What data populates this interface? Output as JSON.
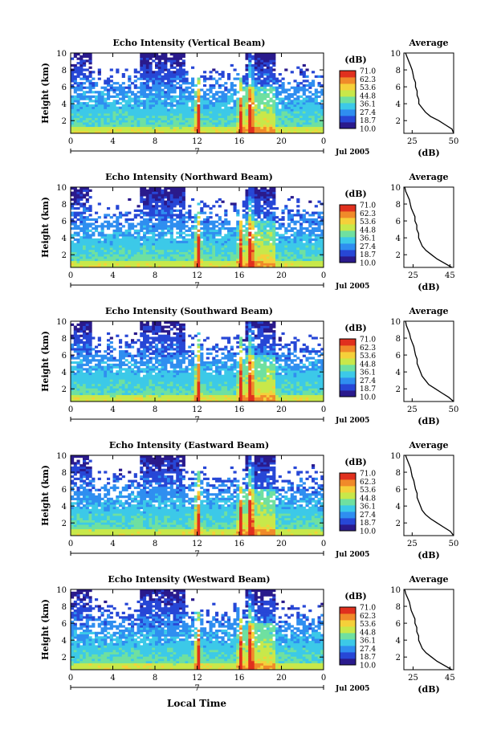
{
  "figure": {
    "x_axis_title": "Local Time",
    "date_label": "Jul 2005",
    "day_marker": "7",
    "colorbar_unit": "(dB)",
    "colorbar_ticks": [
      "71.0",
      "62.3",
      "53.6",
      "44.8",
      "36.1",
      "27.4",
      "18.7",
      "10.0"
    ],
    "colormap": [
      "#2a1a8c",
      "#2747d6",
      "#2f8ef0",
      "#3cc9e8",
      "#6fe0a0",
      "#c8e84a",
      "#f5d03a",
      "#f08a2a",
      "#e0301e"
    ],
    "missing_color": "#ffffff"
  },
  "chart_data": [
    {
      "type": "heatmap",
      "title": "Echo Intensity (Vertical Beam)",
      "ylabel": "Height (km)",
      "x_ticks": [
        "0",
        "4",
        "8",
        "12",
        "16",
        "20",
        "0"
      ],
      "xlim": [
        0,
        24
      ],
      "y_ticks": [
        "2",
        "4",
        "6",
        "8",
        "10"
      ],
      "ylim": [
        0.5,
        10
      ],
      "color_range_db": [
        10.0,
        71.0
      ],
      "average_profile": {
        "title": "Average",
        "xlabel": "(dB)",
        "x_ticks": [
          "25",
          "50"
        ],
        "xlim": [
          20,
          50
        ],
        "y_ticks": [
          "2",
          "4",
          "6",
          "8",
          "10"
        ],
        "ylim": [
          0.5,
          10
        ],
        "height_km": [
          10.0,
          9.5,
          9.0,
          8.5,
          8.0,
          7.5,
          7.0,
          6.5,
          6.0,
          5.5,
          5.0,
          4.5,
          4.0,
          3.5,
          3.0,
          2.5,
          2.0,
          1.5,
          1.0,
          0.5
        ],
        "db": [
          21,
          22,
          23,
          24,
          25,
          25.5,
          26,
          27,
          27,
          28,
          28,
          29,
          29,
          31,
          33,
          36,
          41,
          45,
          49,
          50
        ]
      }
    },
    {
      "type": "heatmap",
      "title": "Echo Intensity (Northward Beam)",
      "ylabel": "Height (km)",
      "x_ticks": [
        "0",
        "4",
        "8",
        "12",
        "16",
        "20",
        "0"
      ],
      "xlim": [
        0,
        24
      ],
      "y_ticks": [
        "2",
        "4",
        "6",
        "8",
        "10"
      ],
      "ylim": [
        0.5,
        10
      ],
      "color_range_db": [
        10.0,
        71.0
      ],
      "average_profile": {
        "title": "Average",
        "xlabel": "(dB)",
        "x_ticks": [
          "25",
          "45"
        ],
        "xlim": [
          20,
          47
        ],
        "y_ticks": [
          "2",
          "4",
          "6",
          "8",
          "10"
        ],
        "ylim": [
          0.5,
          10
        ],
        "height_km": [
          10.0,
          9.5,
          9.0,
          8.5,
          8.0,
          7.5,
          7.0,
          6.5,
          6.0,
          5.5,
          5.0,
          4.5,
          4.0,
          3.5,
          3.0,
          2.5,
          2.0,
          1.5,
          1.0,
          0.5
        ],
        "db": [
          20.5,
          21,
          22,
          23,
          23.5,
          24,
          25,
          26,
          26,
          27,
          27,
          28,
          28,
          29,
          30,
          32,
          35,
          38,
          42,
          46
        ]
      }
    },
    {
      "type": "heatmap",
      "title": "Echo Intensity (Southward Beam)",
      "ylabel": "Height (km)",
      "x_ticks": [
        "0",
        "4",
        "8",
        "12",
        "16",
        "20",
        "0"
      ],
      "xlim": [
        0,
        24
      ],
      "y_ticks": [
        "2",
        "4",
        "6",
        "8",
        "10"
      ],
      "ylim": [
        0.5,
        10
      ],
      "color_range_db": [
        10.0,
        71.0
      ],
      "average_profile": {
        "title": "Average",
        "xlabel": "(dB)",
        "x_ticks": [
          "25",
          "50"
        ],
        "xlim": [
          20,
          50
        ],
        "y_ticks": [
          "2",
          "4",
          "6",
          "8",
          "10"
        ],
        "ylim": [
          0.5,
          10
        ],
        "height_km": [
          10.0,
          9.5,
          9.0,
          8.5,
          8.0,
          7.5,
          7.0,
          6.5,
          6.0,
          5.5,
          5.0,
          4.5,
          4.0,
          3.5,
          3.0,
          2.5,
          2.0,
          1.5,
          1.0,
          0.5
        ],
        "db": [
          21,
          21.5,
          22.5,
          23.5,
          24,
          25,
          26,
          26.5,
          27,
          28,
          28,
          29,
          30,
          31,
          33,
          35,
          39,
          43,
          47,
          50
        ]
      }
    },
    {
      "type": "heatmap",
      "title": "Echo Intensity (Eastward Beam)",
      "ylabel": "Height (km)",
      "x_ticks": [
        "0",
        "4",
        "8",
        "12",
        "16",
        "20",
        "0"
      ],
      "xlim": [
        0,
        24
      ],
      "y_ticks": [
        "2",
        "4",
        "6",
        "8",
        "10"
      ],
      "ylim": [
        0.5,
        10
      ],
      "color_range_db": [
        10.0,
        71.0
      ],
      "average_profile": {
        "title": "Average",
        "xlabel": "(dB)",
        "x_ticks": [
          "25",
          "50"
        ],
        "xlim": [
          20,
          50
        ],
        "y_ticks": [
          "2",
          "4",
          "6",
          "8",
          "10"
        ],
        "ylim": [
          0.5,
          10
        ],
        "height_km": [
          10.0,
          9.5,
          9.0,
          8.5,
          8.0,
          7.5,
          7.0,
          6.5,
          6.0,
          5.5,
          5.0,
          4.5,
          4.0,
          3.5,
          3.0,
          2.5,
          2.0,
          1.5,
          1.0,
          0.5
        ],
        "db": [
          21,
          22,
          23,
          24,
          24.5,
          25,
          26,
          26.5,
          27,
          28,
          28,
          29,
          30,
          31,
          33,
          36,
          40,
          44,
          48,
          50
        ]
      }
    },
    {
      "type": "heatmap",
      "title": "Echo Intensity (Westward Beam)",
      "ylabel": "Height (km)",
      "x_ticks": [
        "0",
        "4",
        "8",
        "12",
        "16",
        "20",
        "0"
      ],
      "xlim": [
        0,
        24
      ],
      "y_ticks": [
        "2",
        "4",
        "6",
        "8",
        "10"
      ],
      "ylim": [
        0.5,
        10
      ],
      "color_range_db": [
        10.0,
        71.0
      ],
      "average_profile": {
        "title": "Average",
        "xlabel": "(dB)",
        "x_ticks": [
          "25",
          "45"
        ],
        "xlim": [
          20,
          47
        ],
        "y_ticks": [
          "2",
          "4",
          "6",
          "8",
          "10"
        ],
        "ylim": [
          0.5,
          10
        ],
        "height_km": [
          10.0,
          9.5,
          9.0,
          8.5,
          8.0,
          7.5,
          7.0,
          6.5,
          6.0,
          5.5,
          5.0,
          4.5,
          4.0,
          3.5,
          3.0,
          2.5,
          2.0,
          1.5,
          1.0,
          0.5
        ],
        "db": [
          20.5,
          21,
          22,
          23,
          23.5,
          24,
          25,
          26,
          26,
          27,
          27,
          28,
          28,
          29,
          30,
          32,
          35,
          38,
          42,
          46
        ]
      }
    }
  ]
}
